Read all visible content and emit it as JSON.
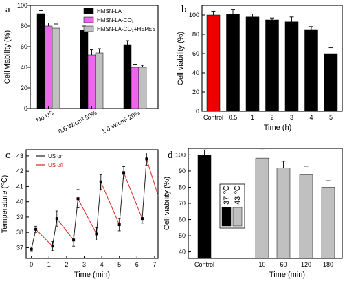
{
  "chart_data": [
    {
      "panel": "a",
      "type": "bar",
      "ylabel": "Cell viability (%)",
      "ylim": [
        0,
        100
      ],
      "yticks": [
        0,
        20,
        40,
        60,
        80,
        100
      ],
      "categories": [
        "No US",
        "0.6 W/cm² 50%",
        "1.0 W/cm² 20%"
      ],
      "series": [
        {
          "name": "HMSN-LA",
          "color": "#000000",
          "values": [
            92,
            76,
            62
          ],
          "errors": [
            3,
            4,
            4
          ]
        },
        {
          "name": "HMSN-LA-CO₂",
          "color": "#ee66ee",
          "values": [
            80,
            52,
            40
          ],
          "errors": [
            3,
            5,
            3
          ]
        },
        {
          "name": "HMSN-LA-CO₂+HEPES",
          "color": "#c0c0c0",
          "values": [
            78,
            54,
            40
          ],
          "errors": [
            4,
            4,
            2
          ]
        }
      ]
    },
    {
      "panel": "b",
      "type": "bar",
      "xlabel": "Time (h)",
      "ylabel": "Cell viability (%)",
      "ylim": [
        0,
        110
      ],
      "yticks": [
        0,
        20,
        40,
        60,
        80,
        100
      ],
      "categories": [
        "Control",
        "0.5",
        "1",
        "2",
        "3",
        "4",
        "5"
      ],
      "values": [
        100,
        101,
        98,
        95,
        93,
        85,
        60
      ],
      "errors": [
        4,
        5,
        3,
        2,
        5,
        3,
        6
      ],
      "colors": [
        "#ee0000",
        "#000000",
        "#000000",
        "#000000",
        "#000000",
        "#000000",
        "#000000"
      ]
    },
    {
      "panel": "c",
      "type": "line",
      "xlabel": "Time (min)",
      "ylabel": "Temperature (℃)",
      "xlim": [
        -0.3,
        7.2
      ],
      "ylim": [
        36.3,
        43.4
      ],
      "xticks": [
        0,
        1,
        2,
        3,
        4,
        5,
        6,
        7
      ],
      "yticks": [
        37,
        38,
        39,
        40,
        41,
        42,
        43
      ],
      "series": [
        {
          "name": "US on",
          "color": "#222222",
          "segments": [
            [
              [
                0.0,
                36.9
              ],
              [
                0.25,
                38.2
              ]
            ],
            [
              [
                1.2,
                37.1
              ],
              [
                1.45,
                38.9
              ]
            ],
            [
              [
                2.4,
                37.5
              ],
              [
                2.65,
                40.2
              ]
            ],
            [
              [
                3.7,
                37.9
              ],
              [
                3.95,
                41.3
              ]
            ],
            [
              [
                5.0,
                38.5
              ],
              [
                5.25,
                41.9
              ]
            ],
            [
              [
                6.3,
                38.9
              ],
              [
                6.55,
                42.8
              ]
            ]
          ]
        },
        {
          "name": "US off",
          "color": "#dd2222",
          "segments": [
            [
              [
                0.25,
                38.2
              ],
              [
                1.2,
                37.1
              ]
            ],
            [
              [
                1.45,
                38.9
              ],
              [
                2.4,
                37.5
              ]
            ],
            [
              [
                2.65,
                40.2
              ],
              [
                3.7,
                37.9
              ]
            ],
            [
              [
                3.95,
                41.3
              ],
              [
                5.0,
                38.5
              ]
            ],
            [
              [
                5.25,
                41.9
              ],
              [
                6.3,
                38.9
              ]
            ],
            [
              [
                6.55,
                42.8
              ],
              [
                7.2,
                40.4
              ]
            ]
          ]
        }
      ],
      "points": [
        [
          0.0,
          36.9
        ],
        [
          0.25,
          38.2
        ],
        [
          1.2,
          37.1
        ],
        [
          1.45,
          38.9
        ],
        [
          2.4,
          37.5
        ],
        [
          2.65,
          40.2
        ],
        [
          3.7,
          37.9
        ],
        [
          3.95,
          41.3
        ],
        [
          5.0,
          38.5
        ],
        [
          5.25,
          41.9
        ],
        [
          6.3,
          38.9
        ],
        [
          6.55,
          42.8
        ]
      ],
      "errors": [
        0.15,
        0.2,
        0.3,
        0.5,
        0.4,
        0.6,
        0.4,
        0.5,
        0.4,
        0.4,
        0.3,
        0.4
      ]
    },
    {
      "panel": "d",
      "type": "bar",
      "xlabel": "Time (min)",
      "ylabel": "Cell viability (%)",
      "ylim": [
        36,
        104
      ],
      "yticks": [
        40,
        50,
        60,
        70,
        80,
        90,
        100
      ],
      "categories": [
        "Control",
        "10",
        "60",
        "120",
        "180"
      ],
      "values": [
        100,
        98,
        92,
        88,
        80
      ],
      "errors": [
        3,
        5,
        4,
        5,
        4
      ],
      "colors": [
        "#000000",
        "#c0c0c0",
        "#c0c0c0",
        "#c0c0c0",
        "#c0c0c0"
      ],
      "legend": [
        {
          "name": "37 ℃",
          "color": "#000000"
        },
        {
          "name": "43 ℃",
          "color": "#c0c0c0"
        }
      ]
    }
  ],
  "panel_labels": [
    "a",
    "b",
    "c",
    "d"
  ]
}
